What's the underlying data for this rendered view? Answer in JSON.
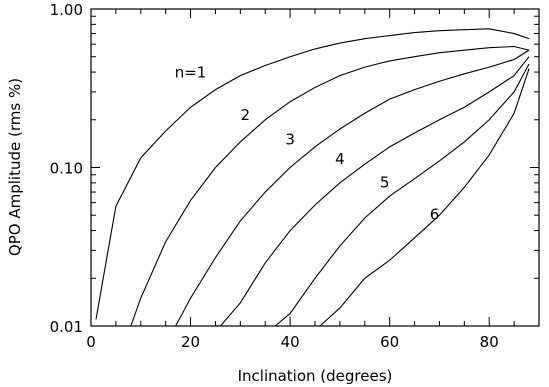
{
  "chart_data": {
    "type": "line",
    "title": "",
    "xlabel": "Inclination (degrees)",
    "ylabel": "QPO Amplitude (rms %)",
    "xlim": [
      0,
      90
    ],
    "ylim": [
      0.01,
      1.0
    ],
    "yscale": "log",
    "grid": false,
    "x_ticks": [
      {
        "value": 0,
        "label": "0"
      },
      {
        "value": 20,
        "label": "20"
      },
      {
        "value": 40,
        "label": "40"
      },
      {
        "value": 60,
        "label": "60"
      },
      {
        "value": 80,
        "label": "80"
      }
    ],
    "x_minor_ticks": [
      5,
      10,
      15,
      25,
      30,
      35,
      45,
      50,
      55,
      65,
      70,
      75,
      85,
      90
    ],
    "y_ticks": [
      {
        "value": 0.01,
        "label": "0.01"
      },
      {
        "value": 0.1,
        "label": "0.10"
      },
      {
        "value": 1.0,
        "label": "1.00"
      }
    ],
    "y_minor_ticks": [
      0.02,
      0.03,
      0.04,
      0.05,
      0.06,
      0.07,
      0.08,
      0.09,
      0.2,
      0.3,
      0.4,
      0.5,
      0.6,
      0.7,
      0.8,
      0.9
    ],
    "series": [
      {
        "name": "n=1",
        "label": {
          "text": "n=1",
          "x": 20,
          "y": 0.37
        },
        "points": [
          [
            1,
            0.011
          ],
          [
            5,
            0.057
          ],
          [
            10,
            0.115
          ],
          [
            15,
            0.17
          ],
          [
            20,
            0.24
          ],
          [
            25,
            0.31
          ],
          [
            30,
            0.38
          ],
          [
            35,
            0.44
          ],
          [
            40,
            0.5
          ],
          [
            45,
            0.56
          ],
          [
            50,
            0.61
          ],
          [
            55,
            0.65
          ],
          [
            60,
            0.68
          ],
          [
            65,
            0.71
          ],
          [
            70,
            0.73
          ],
          [
            75,
            0.74
          ],
          [
            80,
            0.75
          ],
          [
            85,
            0.7
          ],
          [
            88,
            0.65
          ]
        ]
      },
      {
        "name": "2",
        "label": {
          "text": "2",
          "x": 31,
          "y": 0.2
        },
        "points": [
          [
            8,
            0.01
          ],
          [
            10,
            0.015
          ],
          [
            15,
            0.034
          ],
          [
            20,
            0.062
          ],
          [
            25,
            0.1
          ],
          [
            30,
            0.145
          ],
          [
            35,
            0.2
          ],
          [
            40,
            0.26
          ],
          [
            45,
            0.32
          ],
          [
            50,
            0.38
          ],
          [
            55,
            0.43
          ],
          [
            60,
            0.47
          ],
          [
            65,
            0.5
          ],
          [
            70,
            0.53
          ],
          [
            75,
            0.55
          ],
          [
            80,
            0.57
          ],
          [
            85,
            0.58
          ],
          [
            88,
            0.55
          ]
        ]
      },
      {
        "name": "3",
        "label": {
          "text": "3",
          "x": 40,
          "y": 0.14
        },
        "points": [
          [
            17,
            0.01
          ],
          [
            20,
            0.015
          ],
          [
            25,
            0.027
          ],
          [
            30,
            0.046
          ],
          [
            35,
            0.07
          ],
          [
            40,
            0.1
          ],
          [
            45,
            0.135
          ],
          [
            50,
            0.175
          ],
          [
            55,
            0.22
          ],
          [
            60,
            0.27
          ],
          [
            65,
            0.31
          ],
          [
            70,
            0.35
          ],
          [
            75,
            0.39
          ],
          [
            80,
            0.43
          ],
          [
            85,
            0.48
          ],
          [
            88,
            0.55
          ]
        ]
      },
      {
        "name": "4",
        "label": {
          "text": "4",
          "x": 50,
          "y": 0.105
        },
        "points": [
          [
            26,
            0.01
          ],
          [
            30,
            0.014
          ],
          [
            35,
            0.025
          ],
          [
            40,
            0.04
          ],
          [
            45,
            0.058
          ],
          [
            50,
            0.08
          ],
          [
            55,
            0.105
          ],
          [
            60,
            0.135
          ],
          [
            65,
            0.165
          ],
          [
            70,
            0.2
          ],
          [
            75,
            0.24
          ],
          [
            80,
            0.3
          ],
          [
            85,
            0.38
          ],
          [
            88,
            0.5
          ]
        ]
      },
      {
        "name": "5",
        "label": {
          "text": "5",
          "x": 59,
          "y": 0.075
        },
        "points": [
          [
            37,
            0.01
          ],
          [
            40,
            0.012
          ],
          [
            45,
            0.02
          ],
          [
            50,
            0.032
          ],
          [
            55,
            0.048
          ],
          [
            60,
            0.066
          ],
          [
            65,
            0.085
          ],
          [
            70,
            0.11
          ],
          [
            75,
            0.145
          ],
          [
            80,
            0.2
          ],
          [
            85,
            0.3
          ],
          [
            88,
            0.45
          ]
        ]
      },
      {
        "name": "6",
        "label": {
          "text": "6",
          "x": 69,
          "y": 0.047
        },
        "points": [
          [
            46,
            0.01
          ],
          [
            50,
            0.013
          ],
          [
            55,
            0.02
          ],
          [
            60,
            0.026
          ],
          [
            65,
            0.036
          ],
          [
            70,
            0.05
          ],
          [
            75,
            0.075
          ],
          [
            80,
            0.12
          ],
          [
            85,
            0.22
          ],
          [
            88,
            0.42
          ]
        ]
      }
    ]
  }
}
